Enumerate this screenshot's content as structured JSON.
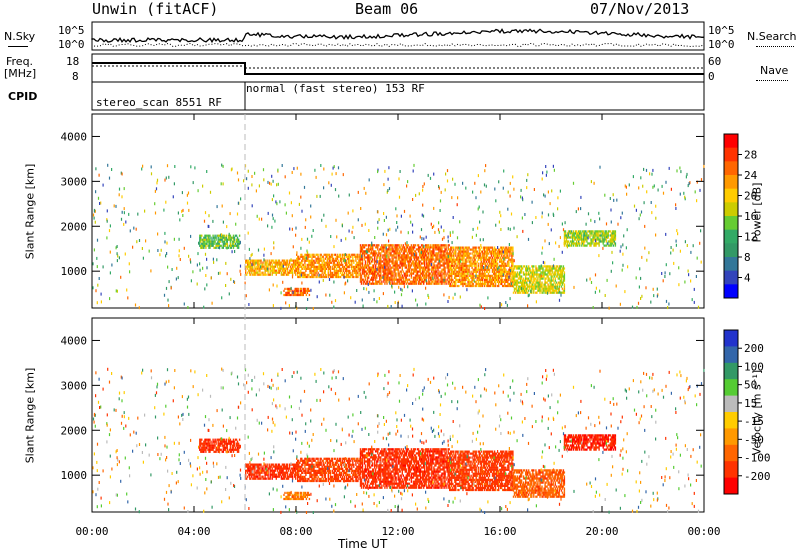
{
  "header": {
    "title_left": "Unwin (fitACF)",
    "title_center": "Beam 06",
    "date": "07/Nov/2013"
  },
  "summary_panel": {
    "nsky_label": "N.Sky",
    "nsearch_label": "N.Search",
    "left_ticks": [
      "10^5",
      "10^0"
    ],
    "right_ticks": [
      "10^5",
      "10^0"
    ],
    "freq_label_line1": "Freq.",
    "freq_label_line2": "[MHz]",
    "freq_ticks": [
      "18",
      "8"
    ],
    "nave_label": "Nave",
    "nave_ticks": [
      "60",
      "0"
    ],
    "cpid_label": "CPID",
    "cpid_segments": [
      {
        "label": "stereo_scan 8551 RF",
        "start_hour": 0,
        "end_hour": 6
      },
      {
        "label": "normal (fast stereo) 153 RF",
        "start_hour": 6,
        "end_hour": 24
      }
    ]
  },
  "power_colorbar": {
    "label": "Power [dB]",
    "ticks": [
      "28",
      "24",
      "20",
      "16",
      "12",
      "8",
      "4"
    ],
    "colors": [
      "#ff0000",
      "#ff3300",
      "#ff6600",
      "#ff9900",
      "#ffcc00",
      "#cccc00",
      "#66cc33",
      "#33aa66",
      "#339966",
      "#337799",
      "#3344bb",
      "#0000ff"
    ]
  },
  "velocity_colorbar": {
    "label": "Velocity [m s⁻¹]",
    "ticks": [
      "200",
      "100",
      "50",
      "15",
      "-15",
      "-50",
      "-100",
      "-200"
    ],
    "colors": [
      "#2233cc",
      "#3366aa",
      "#339966",
      "#55cc33",
      "#bbbbbb",
      "#ffcc00",
      "#ff9900",
      "#ff6600",
      "#ff3300",
      "#ff0000"
    ]
  },
  "chart_data": [
    {
      "type": "heatmap",
      "quantity": "Power",
      "ylabel": "Slant Range [km]",
      "xlabel": "Time UT",
      "xlim": [
        0,
        24
      ],
      "ylim": [
        180,
        4500
      ],
      "y_ticks": [
        1000,
        2000,
        3000,
        4000
      ],
      "x_ticks": [
        "00:00",
        "04:00",
        "08:00",
        "12:00",
        "16:00",
        "20:00",
        "00:00"
      ],
      "zlim": [
        0,
        32
      ],
      "bands": [
        {
          "t0": 6.0,
          "t1": 8.0,
          "r0": 900,
          "r1": 1250,
          "level": 22
        },
        {
          "t0": 8.0,
          "t1": 10.5,
          "r0": 850,
          "r1": 1350,
          "level": 24
        },
        {
          "t0": 10.5,
          "t1": 14.0,
          "r0": 700,
          "r1": 1600,
          "level": 26
        },
        {
          "t0": 14.0,
          "t1": 16.5,
          "r0": 650,
          "r1": 1550,
          "level": 24
        },
        {
          "t0": 16.5,
          "t1": 18.5,
          "r0": 500,
          "r1": 1100,
          "level": 18
        },
        {
          "t0": 4.2,
          "t1": 5.8,
          "r0": 1500,
          "r1": 1800,
          "level": 14
        },
        {
          "t0": 18.5,
          "t1": 20.5,
          "r0": 1550,
          "r1": 1900,
          "level": 16
        },
        {
          "t0": 7.5,
          "t1": 8.5,
          "r0": 450,
          "r1": 620,
          "level": 26
        }
      ]
    },
    {
      "type": "heatmap",
      "quantity": "Velocity",
      "ylabel": "Slant Range [km]",
      "xlabel": "Time UT",
      "xlim": [
        0,
        24
      ],
      "ylim": [
        180,
        4500
      ],
      "y_ticks": [
        1000,
        2000,
        3000,
        4000
      ],
      "x_ticks": [
        "00:00",
        "04:00",
        "08:00",
        "12:00",
        "16:00",
        "20:00",
        "00:00"
      ],
      "zlim": [
        -250,
        250
      ],
      "bands": [
        {
          "t0": 6.0,
          "t1": 8.0,
          "r0": 900,
          "r1": 1250,
          "level": -200
        },
        {
          "t0": 8.0,
          "t1": 10.5,
          "r0": 850,
          "r1": 1350,
          "level": -180
        },
        {
          "t0": 10.5,
          "t1": 14.0,
          "r0": 700,
          "r1": 1600,
          "level": -200
        },
        {
          "t0": 14.0,
          "t1": 16.5,
          "r0": 650,
          "r1": 1550,
          "level": -190
        },
        {
          "t0": 16.5,
          "t1": 18.5,
          "r0": 500,
          "r1": 1100,
          "level": -150
        },
        {
          "t0": 4.2,
          "t1": 5.8,
          "r0": 1500,
          "r1": 1800,
          "level": -200
        },
        {
          "t0": 18.5,
          "t1": 20.5,
          "r0": 1550,
          "r1": 1900,
          "level": -220
        },
        {
          "t0": 7.5,
          "t1": 8.5,
          "r0": 450,
          "r1": 620,
          "level": -120
        }
      ]
    }
  ]
}
